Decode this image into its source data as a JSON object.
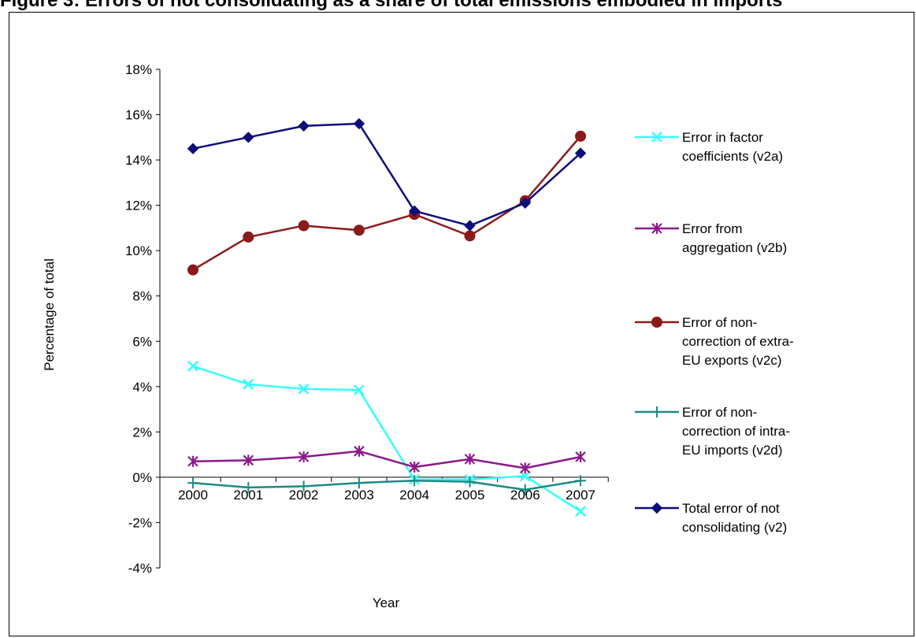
{
  "page": {
    "title_strip": "Figure 3: Errors of not consolidating as a share of total emissions embodied in imports"
  },
  "chart_data": {
    "type": "line",
    "title": "",
    "xlabel": "Year",
    "ylabel": "Percentage of total",
    "categories": [
      "2000",
      "2001",
      "2002",
      "2003",
      "2004",
      "2005",
      "2006",
      "2007"
    ],
    "ylim": [
      -4,
      18
    ],
    "yticks": [
      -4,
      -2,
      0,
      2,
      4,
      6,
      8,
      10,
      12,
      14,
      16,
      18
    ],
    "ytick_labels": [
      "-4%",
      "-2%",
      "0%",
      "2%",
      "4%",
      "6%",
      "8%",
      "10%",
      "12%",
      "14%",
      "16%",
      "18%"
    ],
    "grid": false,
    "legend_position": "right",
    "series": [
      {
        "name": "Error in factor coefficients (v2a)",
        "legend_lines": [
          "Error in factor",
          "coefficients (v2a)"
        ],
        "color": "#33ffff",
        "marker": "x",
        "values": [
          4.9,
          4.1,
          3.9,
          3.85,
          -0.1,
          -0.1,
          0.05,
          -1.5
        ]
      },
      {
        "name": "Error from aggregation (v2b)",
        "legend_lines": [
          "Error from",
          "aggregation (v2b)"
        ],
        "color": "#8b1a8b",
        "marker": "asterisk",
        "values": [
          0.7,
          0.75,
          0.9,
          1.15,
          0.45,
          0.8,
          0.4,
          0.9
        ]
      },
      {
        "name": "Error of non-correction of extra-EU exports (v2c)",
        "legend_lines": [
          "Error of non-",
          "correction of extra-",
          "EU exports (v2c)"
        ],
        "color": "#8b1a1a",
        "marker": "circle",
        "values": [
          9.15,
          10.6,
          11.1,
          10.9,
          11.6,
          10.65,
          12.2,
          15.05
        ]
      },
      {
        "name": "Error of non-correction of intra-EU imports (v2d)",
        "legend_lines": [
          "Error of non-",
          "correction of intra-",
          "EU imports (v2d)"
        ],
        "color": "#1f8a84",
        "marker": "plus",
        "values": [
          -0.25,
          -0.45,
          -0.4,
          -0.25,
          -0.15,
          -0.2,
          -0.55,
          -0.15
        ]
      },
      {
        "name": "Total error of not consolidating (v2)",
        "legend_lines": [
          "Total error of not",
          "consolidating (v2)"
        ],
        "color": "#0d0d7a",
        "marker": "diamond",
        "values": [
          14.5,
          15.0,
          15.5,
          15.6,
          11.75,
          11.1,
          12.1,
          14.3
        ]
      }
    ]
  }
}
